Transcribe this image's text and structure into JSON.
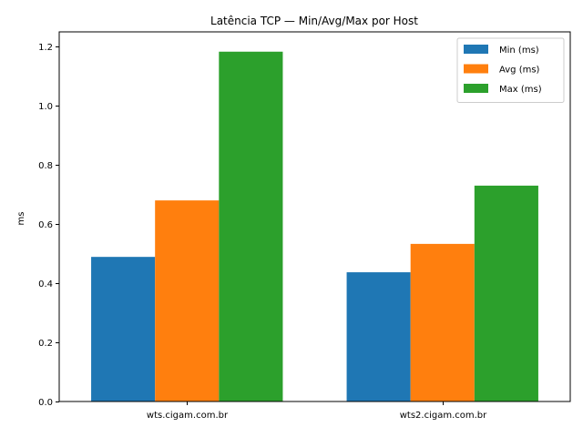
{
  "chart_data": {
    "type": "bar",
    "title": "Latência TCP — Min/Avg/Max por Host",
    "xlabel": "",
    "ylabel": "ms",
    "categories": [
      "wts.cigam.com.br",
      "wts2.cigam.com.br"
    ],
    "series": [
      {
        "name": "Min (ms)",
        "values": [
          0.489,
          0.437
        ],
        "color": "#1f77b4"
      },
      {
        "name": "Avg (ms)",
        "values": [
          0.68,
          0.533
        ],
        "color": "#ff7f0e"
      },
      {
        "name": "Max (ms)",
        "values": [
          1.183,
          0.73
        ],
        "color": "#2ca02c"
      }
    ],
    "ylim": [
      0,
      1.25
    ],
    "yticks": [
      "0.0",
      "0.2",
      "0.4",
      "0.6",
      "0.8",
      "1.0",
      "1.2"
    ],
    "grid": false,
    "legend": "top-right"
  }
}
